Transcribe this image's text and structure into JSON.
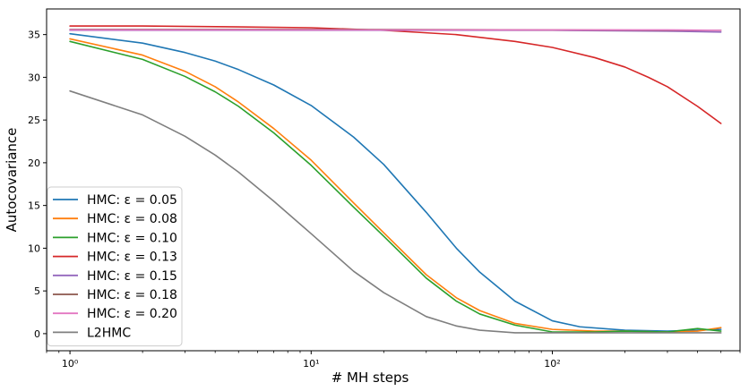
{
  "chart_data": {
    "type": "line",
    "xscale": "log",
    "xlabel": "# MH steps",
    "ylabel": "Autocovariance",
    "xlim": [
      0.8,
      600
    ],
    "ylim": [
      -2,
      38
    ],
    "xticks": [
      1,
      10,
      100
    ],
    "xtick_labels": [
      "10⁰",
      "10¹",
      "10²"
    ],
    "yticks": [
      0,
      5,
      10,
      15,
      20,
      25,
      30,
      35
    ],
    "ytick_labels": [
      "0",
      "5",
      "10",
      "15",
      "20",
      "25",
      "30",
      "35"
    ],
    "grid": false,
    "legend_position": "lower-left",
    "series": [
      {
        "name": "HMC: ε = 0.05",
        "color": "#1f77b4",
        "points": [
          [
            1,
            35.1
          ],
          [
            2,
            34.0
          ],
          [
            3,
            32.9
          ],
          [
            4,
            31.9
          ],
          [
            5,
            30.9
          ],
          [
            7,
            29.1
          ],
          [
            10,
            26.7
          ],
          [
            15,
            23.0
          ],
          [
            20,
            19.8
          ],
          [
            30,
            14.2
          ],
          [
            40,
            10.0
          ],
          [
            50,
            7.2
          ],
          [
            70,
            3.8
          ],
          [
            100,
            1.5
          ],
          [
            130,
            0.8
          ],
          [
            200,
            0.4
          ],
          [
            300,
            0.3
          ],
          [
            400,
            0.4
          ],
          [
            500,
            0.5
          ]
        ]
      },
      {
        "name": "HMC: ε = 0.08",
        "color": "#ff7f0e",
        "points": [
          [
            1,
            34.5
          ],
          [
            2,
            32.6
          ],
          [
            3,
            30.7
          ],
          [
            4,
            28.9
          ],
          [
            5,
            27.1
          ],
          [
            7,
            24.0
          ],
          [
            10,
            20.3
          ],
          [
            15,
            15.3
          ],
          [
            20,
            11.8
          ],
          [
            30,
            6.9
          ],
          [
            40,
            4.2
          ],
          [
            50,
            2.7
          ],
          [
            70,
            1.2
          ],
          [
            100,
            0.5
          ],
          [
            150,
            0.3
          ],
          [
            200,
            0.3
          ],
          [
            300,
            0.2
          ],
          [
            400,
            0.3
          ],
          [
            500,
            0.7
          ]
        ]
      },
      {
        "name": "HMC: ε = 0.10",
        "color": "#2ca02c",
        "points": [
          [
            1,
            34.2
          ],
          [
            2,
            32.1
          ],
          [
            3,
            30.1
          ],
          [
            4,
            28.3
          ],
          [
            5,
            26.6
          ],
          [
            7,
            23.5
          ],
          [
            10,
            19.7
          ],
          [
            15,
            14.8
          ],
          [
            20,
            11.4
          ],
          [
            30,
            6.5
          ],
          [
            40,
            3.8
          ],
          [
            50,
            2.3
          ],
          [
            70,
            1.0
          ],
          [
            100,
            0.2
          ],
          [
            150,
            0.2
          ],
          [
            200,
            0.3
          ],
          [
            300,
            0.2
          ],
          [
            400,
            0.6
          ],
          [
            500,
            0.3
          ]
        ]
      },
      {
        "name": "HMC: ε = 0.13",
        "color": "#d62728",
        "points": [
          [
            1,
            36.0
          ],
          [
            2,
            36.0
          ],
          [
            5,
            35.9
          ],
          [
            10,
            35.8
          ],
          [
            20,
            35.5
          ],
          [
            40,
            35.0
          ],
          [
            70,
            34.2
          ],
          [
            100,
            33.5
          ],
          [
            150,
            32.3
          ],
          [
            200,
            31.2
          ],
          [
            250,
            30.0
          ],
          [
            300,
            28.9
          ],
          [
            400,
            26.6
          ],
          [
            500,
            24.6
          ]
        ]
      },
      {
        "name": "HMC: ε = 0.15",
        "color": "#9467bd",
        "points": [
          [
            1,
            35.5
          ],
          [
            10,
            35.5
          ],
          [
            100,
            35.5
          ],
          [
            300,
            35.4
          ],
          [
            500,
            35.3
          ]
        ]
      },
      {
        "name": "HMC: ε = 0.18",
        "color": "#8c564b",
        "points": [
          [
            1,
            35.6
          ],
          [
            10,
            35.6
          ],
          [
            100,
            35.55
          ],
          [
            300,
            35.5
          ],
          [
            500,
            35.5
          ]
        ]
      },
      {
        "name": "HMC: ε = 0.20",
        "color": "#e377c2",
        "points": [
          [
            1,
            35.55
          ],
          [
            10,
            35.55
          ],
          [
            100,
            35.55
          ],
          [
            300,
            35.55
          ],
          [
            500,
            35.5
          ]
        ]
      },
      {
        "name": "L2HMC",
        "color": "#7f7f7f",
        "points": [
          [
            1,
            28.4
          ],
          [
            2,
            25.6
          ],
          [
            3,
            23.1
          ],
          [
            4,
            20.9
          ],
          [
            5,
            18.9
          ],
          [
            7,
            15.5
          ],
          [
            10,
            11.7
          ],
          [
            15,
            7.3
          ],
          [
            20,
            4.8
          ],
          [
            30,
            2.0
          ],
          [
            40,
            0.9
          ],
          [
            50,
            0.4
          ],
          [
            70,
            0.1
          ],
          [
            100,
            0.1
          ],
          [
            200,
            0.1
          ],
          [
            300,
            0.1
          ],
          [
            500,
            0.1
          ]
        ]
      }
    ]
  }
}
